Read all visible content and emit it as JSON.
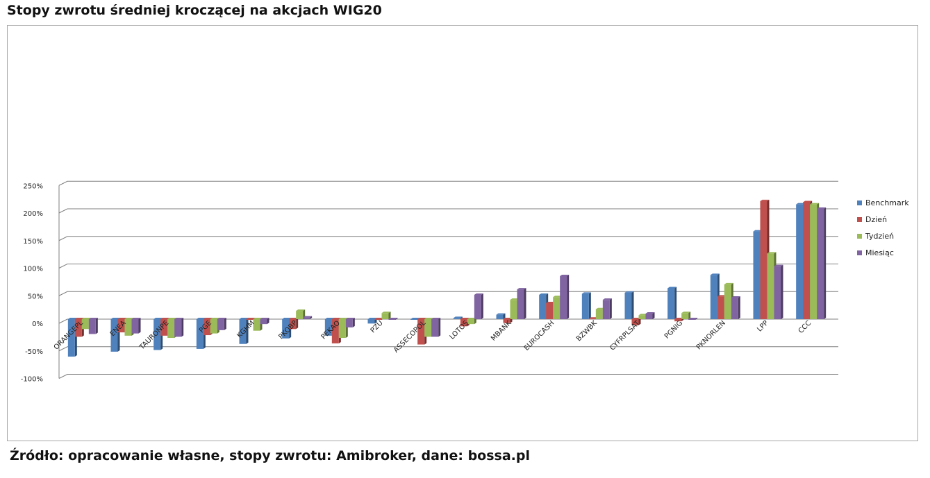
{
  "header": {
    "title": "Stopy zwrotu średniej kroczącej na akcjach WIG20"
  },
  "footer": {
    "source": "Źródło: opracowanie własne, stopy zwrotu: Amibroker, dane: bossa.pl"
  },
  "colors": {
    "Benchmark": "#4f81bd",
    "Dzień": "#c0504d",
    "Tydzień": "#9bbb59",
    "Miesiąc": "#8064a2",
    "grid": "#7f7f7f"
  },
  "chart_data": {
    "type": "bar",
    "style": "3d-clustered-column",
    "title": "Stopy zwrotu średniej kroczącej na akcjach WIG20",
    "xlabel": "",
    "ylabel": "",
    "ylim": [
      -100,
      250
    ],
    "yticks": [
      "250%",
      "200%",
      "150%",
      "100%",
      "50%",
      "0%",
      "-50%",
      "-100%"
    ],
    "ytick_values": [
      250,
      200,
      150,
      100,
      50,
      0,
      -50,
      -100
    ],
    "grid": true,
    "legend": "right",
    "categories": [
      "ORANGEPL",
      "ENEA",
      "TAURONPE",
      "PGE",
      "KGHM",
      "PKOBP",
      "PEKAO",
      "PZU",
      "ASSECOPOL",
      "LOTOS",
      "MBANK",
      "EUROCASH",
      "BZWBK",
      "CYFRPLSAT",
      "PGNIG",
      "PKNORLEN",
      "LPP",
      "CCC"
    ],
    "series": [
      {
        "name": "Benchmark",
        "values": [
          -68,
          -59,
          -56,
          -54,
          -45,
          -35,
          -30,
          -8,
          -1,
          2,
          8,
          44,
          46,
          48,
          56,
          80,
          159,
          208
        ]
      },
      {
        "name": "Dzień",
        "values": [
          -32,
          -24,
          -30,
          -29,
          -1,
          -18,
          -44,
          0,
          -46,
          -13,
          -7,
          29,
          1,
          -11,
          -4,
          41,
          214,
          212
        ]
      },
      {
        "name": "Tydzień",
        "values": [
          -18,
          -30,
          -34,
          -26,
          -21,
          15,
          -34,
          11,
          -32,
          -9,
          35,
          40,
          18,
          7,
          11,
          63,
          119,
          208
        ]
      },
      {
        "name": "Miesiąc",
        "values": [
          -27,
          -26,
          -32,
          -20,
          -9,
          3,
          -15,
          -1,
          -32,
          44,
          54,
          78,
          35,
          10,
          0,
          39,
          96,
          200
        ]
      }
    ]
  }
}
